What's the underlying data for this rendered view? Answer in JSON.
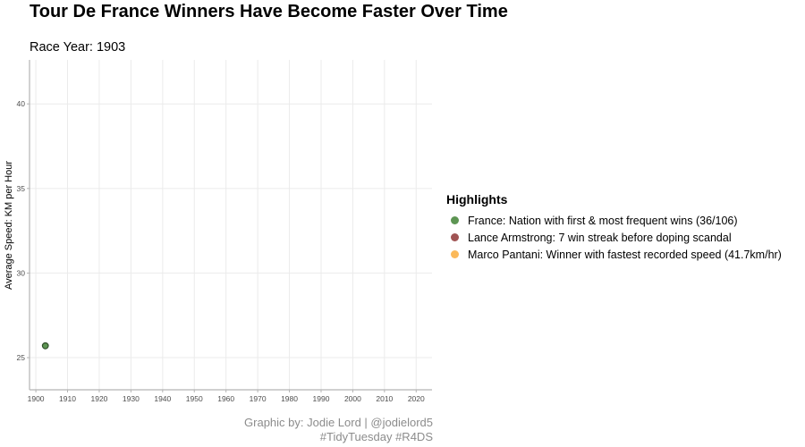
{
  "chart_data": {
    "type": "scatter",
    "title": "Tour De France Winners Have Become Faster Over Time",
    "subtitle": "Race Year: 1903",
    "xlabel": "",
    "ylabel": "Average Speed: KM per Hour",
    "xlim": [
      1898,
      2025
    ],
    "ylim": [
      23.1,
      42.6
    ],
    "x_ticks": [
      1900,
      1910,
      1920,
      1930,
      1940,
      1950,
      1960,
      1970,
      1980,
      1990,
      2000,
      2010,
      2020
    ],
    "y_ticks": [
      25,
      30,
      35,
      40
    ],
    "grid": true,
    "legend": {
      "title": "Highlights",
      "position": "right",
      "entries": [
        {
          "label": "France: Nation with first & most frequent wins (36/106)",
          "color": "#5d9553"
        },
        {
          "label": "Lance Armstrong: 7 win streak before doping scandal",
          "color": "#a05454"
        },
        {
          "label": "Marco Pantani: Winner with fastest recorded speed (41.7km/hr)",
          "color": "#fbb95a"
        }
      ]
    },
    "points": [
      {
        "x": 1903,
        "y": 25.7,
        "group": "France: Nation with first & most frequent wins (36/106)"
      }
    ],
    "caption": [
      "Graphic by: Jodie Lord | @jodielord5",
      "#TidyTuesday #R4DS"
    ]
  }
}
